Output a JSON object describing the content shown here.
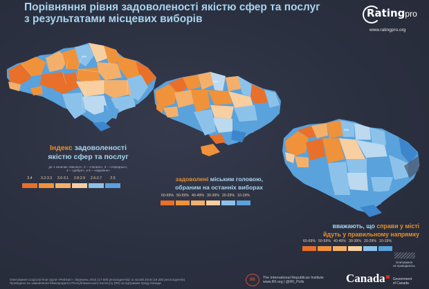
{
  "title": {
    "line1": "Порівняння рівня задоволеності якістю сфер та послуг",
    "line2": "з результатами місцевих виборів"
  },
  "logo": {
    "brand": "Rating",
    "brand_suffix": "pro",
    "url": "www.ratingpro.org"
  },
  "colors": {
    "orange_dark": "#e8702a",
    "orange": "#f0923a",
    "orange_light": "#f4b06a",
    "peach": "#f7cfa0",
    "blue_pale": "#bcd9ef",
    "blue_light": "#8cc2ea",
    "blue": "#5aa2dc",
    "blue_dark": "#3b86cc"
  },
  "legend_index": {
    "title_word1": "Індекс",
    "title_word2": "задоволеності",
    "title_line2": "якістю сфер та послуг",
    "note_line1": "де 1 означає «високо», 2 – «погано», 3 – «середньо»,",
    "note_line2": "4 – «добре», а 5 – «відмінно»",
    "bins": [
      {
        "label": "3.4",
        "color": "#e8702a"
      },
      {
        "label": "3.2-3.3",
        "color": "#f0923a"
      },
      {
        "label": "3.0-3.1",
        "color": "#f4b06a"
      },
      {
        "label": "2.8-2.9",
        "color": "#f7cfa0"
      },
      {
        "label": "2.6-2.7",
        "color": "#8cc2ea"
      },
      {
        "label": "2.5",
        "color": "#5aa2dc"
      }
    ]
  },
  "legend_mayor": {
    "title_hl": "задоволені",
    "title_rest1": " міським головою,",
    "title_line2": "обраним на останніх виборах",
    "bins": [
      {
        "label": "60-69%",
        "color": "#e8702a"
      },
      {
        "label": "50-59%",
        "color": "#f0923a"
      },
      {
        "label": "40-49%",
        "color": "#f4b06a"
      },
      {
        "label": "30-39%",
        "color": "#f7cfa0"
      },
      {
        "label": "20-29%",
        "color": "#8cc2ea"
      },
      {
        "label": "10-19%",
        "color": "#5aa2dc"
      }
    ]
  },
  "legend_direction": {
    "title_line1_a": "вважають, що ",
    "title_line1_b": "справи у місті",
    "title_line2_a": "йдуть ",
    "title_line2_b": "у правильному напрямку",
    "bins": [
      {
        "label": "60-69%",
        "color": "#e8702a"
      },
      {
        "label": "50-59%",
        "color": "#f0923a"
      },
      {
        "label": "40-49%",
        "color": "#f4b06a"
      },
      {
        "label": "30-39%",
        "color": "#f7cfa0"
      },
      {
        "label": "20-29%",
        "color": "#8cc2ea"
      },
      {
        "label": "10-19%",
        "color": "#5aa2dc"
      }
    ],
    "no_elections_line1": "Опитування",
    "no_elections_line2": "не проводилось"
  },
  "cities": {
    "kyiv": "Київ"
  },
  "footer": {
    "line1": "Опитування Соціологічної групи «Рейтинг», березень 2015 (17 600 респондентів) та лютий 2016 (19 200 респондентів).",
    "line2": "Проведено на замовлення Міжнародного Республіканського Інституту (IRI) за підтримки Уряду Канади"
  },
  "iri": {
    "mark": "IRI",
    "line1": "The International Republican Institute",
    "line2": "www.IRI.org | @IRI_Polls"
  },
  "canada": {
    "word": "Canada",
    "gov_line1": "Government",
    "gov_line2": "of Canada"
  }
}
